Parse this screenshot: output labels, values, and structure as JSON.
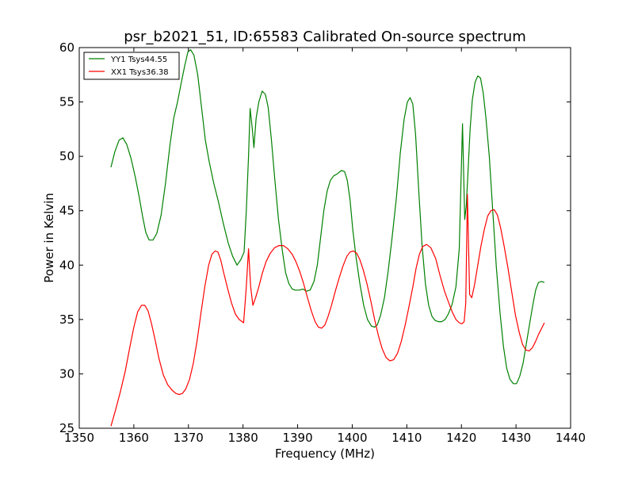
{
  "chart_data": {
    "type": "line",
    "title": "psr_b2021_51, ID:65583 Calibrated On-source spectrum",
    "xlabel": "Frequency (MHz)",
    "ylabel": "Power in Kelvin",
    "xlim": [
      1350,
      1440
    ],
    "ylim": [
      25,
      60
    ],
    "xticks": [
      1350,
      1360,
      1370,
      1380,
      1390,
      1400,
      1410,
      1420,
      1430,
      1440
    ],
    "yticks": [
      25,
      30,
      35,
      40,
      45,
      50,
      55,
      60
    ],
    "grid": false,
    "legend_position": "top-left",
    "series": [
      {
        "name": "YY1 Tsys44.55",
        "color": "#008000",
        "x": [
          1355.8,
          1356.5,
          1357.3,
          1358.0,
          1358.7,
          1359.5,
          1360.3,
          1361.0,
          1361.6,
          1362.2,
          1362.8,
          1363.5,
          1364.2,
          1365.0,
          1365.8,
          1366.6,
          1367.3,
          1368.0,
          1368.7,
          1369.3,
          1369.9,
          1370.4,
          1371.0,
          1371.7,
          1372.4,
          1373.1,
          1373.8,
          1374.6,
          1375.5,
          1376.4,
          1377.3,
          1378.1,
          1378.9,
          1379.6,
          1380.2,
          1380.6,
          1381.0,
          1381.3,
          1381.7,
          1382.0,
          1382.4,
          1382.9,
          1383.5,
          1384.1,
          1384.6,
          1385.2,
          1385.8,
          1386.5,
          1387.2,
          1387.8,
          1388.4,
          1389.0,
          1389.6,
          1390.3,
          1391.0,
          1391.6,
          1392.3,
          1393.0,
          1393.6,
          1394.2,
          1394.8,
          1395.4,
          1396.0,
          1396.6,
          1397.3,
          1398.0,
          1398.6,
          1399.1,
          1399.6,
          1400.1,
          1400.7,
          1401.4,
          1402.1,
          1402.8,
          1403.5,
          1404.1,
          1404.6,
          1405.2,
          1405.9,
          1406.6,
          1407.3,
          1408.1,
          1408.8,
          1409.5,
          1410.1,
          1410.6,
          1411.1,
          1411.6,
          1412.2,
          1412.8,
          1413.4,
          1414.0,
          1414.6,
          1415.2,
          1415.8,
          1416.4,
          1417.0,
          1417.6,
          1418.3,
          1419.0,
          1419.6,
          1420.2,
          1420.6,
          1420.9,
          1421.2,
          1421.6,
          1422.0,
          1422.5,
          1423.0,
          1423.5,
          1424.0,
          1424.5,
          1425.1,
          1425.7,
          1426.4,
          1427.1,
          1427.7,
          1428.3,
          1428.9,
          1429.5,
          1430.1,
          1430.7,
          1431.3,
          1431.9,
          1432.5,
          1433.1,
          1433.6,
          1434.1,
          1434.7,
          1435.2
        ],
        "y": [
          49.0,
          50.4,
          51.5,
          51.7,
          51.1,
          49.8,
          48.0,
          46.2,
          44.5,
          43.0,
          42.3,
          42.3,
          42.9,
          44.6,
          47.5,
          51.0,
          53.5,
          55.0,
          56.8,
          58.3,
          59.6,
          59.8,
          59.3,
          57.5,
          54.5,
          51.5,
          49.5,
          47.6,
          45.8,
          43.8,
          42.0,
          40.8,
          40.0,
          40.5,
          41.2,
          45.0,
          50.0,
          54.4,
          52.5,
          50.8,
          53.5,
          55.0,
          56.0,
          55.7,
          54.5,
          51.5,
          48.0,
          44.2,
          41.3,
          39.3,
          38.3,
          37.8,
          37.7,
          37.7,
          37.8,
          37.6,
          37.7,
          38.5,
          40.0,
          42.5,
          45.0,
          46.8,
          47.8,
          48.2,
          48.4,
          48.7,
          48.6,
          47.8,
          46.0,
          43.3,
          40.7,
          38.3,
          36.3,
          35.0,
          34.4,
          34.3,
          34.5,
          35.4,
          37.0,
          39.5,
          42.5,
          46.2,
          50.3,
          53.4,
          55.0,
          55.4,
          54.8,
          52.0,
          46.7,
          41.8,
          38.3,
          36.3,
          35.3,
          34.9,
          34.8,
          34.8,
          35.0,
          35.5,
          36.4,
          38.0,
          41.5,
          53.0,
          44.2,
          45.5,
          48.5,
          52.5,
          55.2,
          56.8,
          57.4,
          57.2,
          55.8,
          53.5,
          50.0,
          45.3,
          39.8,
          35.5,
          32.5,
          30.5,
          29.5,
          29.1,
          29.1,
          29.8,
          31.0,
          32.8,
          34.6,
          36.4,
          37.7,
          38.4,
          38.5,
          38.4
        ],
        "y_note": "series ends around 1435 MHz"
      },
      {
        "name": "XX1 Tsys36.38",
        "color": "#ff0000",
        "x": [
          1355.8,
          1356.6,
          1357.5,
          1358.4,
          1359.2,
          1360.0,
          1360.7,
          1361.4,
          1362.0,
          1362.6,
          1363.2,
          1363.9,
          1364.6,
          1365.4,
          1366.2,
          1367.0,
          1367.7,
          1368.3,
          1368.9,
          1369.5,
          1370.2,
          1370.9,
          1371.6,
          1372.3,
          1373.0,
          1373.7,
          1374.3,
          1374.9,
          1375.4,
          1375.9,
          1376.5,
          1377.2,
          1377.9,
          1378.6,
          1379.3,
          1380.1,
          1380.6,
          1381.0,
          1381.4,
          1381.8,
          1382.3,
          1382.9,
          1383.5,
          1384.2,
          1385.0,
          1385.8,
          1386.6,
          1387.4,
          1388.2,
          1389.0,
          1389.7,
          1390.4,
          1391.1,
          1391.8,
          1392.5,
          1393.2,
          1393.8,
          1394.4,
          1395.0,
          1395.6,
          1396.2,
          1396.9,
          1397.6,
          1398.3,
          1399.0,
          1399.6,
          1400.2,
          1400.8,
          1401.4,
          1402.0,
          1402.7,
          1403.4,
          1404.1,
          1404.8,
          1405.5,
          1406.2,
          1406.9,
          1407.6,
          1408.3,
          1409.0,
          1409.7,
          1410.4,
          1411.1,
          1411.7,
          1412.3,
          1412.9,
          1413.6,
          1414.4,
          1415.3,
          1416.1,
          1416.9,
          1417.7,
          1418.4,
          1419.0,
          1419.6,
          1420.1,
          1420.5,
          1420.8,
          1421.1,
          1421.5,
          1421.9,
          1422.4,
          1423.0,
          1423.6,
          1424.2,
          1424.8,
          1425.4,
          1426.0,
          1426.6,
          1427.2,
          1427.8,
          1428.5,
          1429.2,
          1429.9,
          1430.6,
          1431.2,
          1431.8,
          1432.4,
          1433.0,
          1433.6,
          1434.2,
          1434.8,
          1435.2
        ],
        "y": [
          25.2,
          26.6,
          28.3,
          30.2,
          32.3,
          34.3,
          35.7,
          36.3,
          36.3,
          35.8,
          34.7,
          33.1,
          31.4,
          29.9,
          29.0,
          28.5,
          28.2,
          28.1,
          28.2,
          28.6,
          29.5,
          31.0,
          33.1,
          35.6,
          38.0,
          40.0,
          41.0,
          41.3,
          41.2,
          40.5,
          39.2,
          37.8,
          36.5,
          35.5,
          35.0,
          34.7,
          38.0,
          41.5,
          38.0,
          36.3,
          37.0,
          38.0,
          39.2,
          40.3,
          41.1,
          41.6,
          41.8,
          41.8,
          41.5,
          41.0,
          40.3,
          39.4,
          38.3,
          37.0,
          35.8,
          34.8,
          34.3,
          34.2,
          34.5,
          35.3,
          36.3,
          37.6,
          38.8,
          39.9,
          40.8,
          41.2,
          41.3,
          41.1,
          40.5,
          39.6,
          38.3,
          36.7,
          35.0,
          33.5,
          32.3,
          31.5,
          31.2,
          31.3,
          31.9,
          33.0,
          34.5,
          36.2,
          38.0,
          39.7,
          41.0,
          41.7,
          41.9,
          41.6,
          40.6,
          39.0,
          37.6,
          36.5,
          35.6,
          35.0,
          34.7,
          34.6,
          34.8,
          36.5,
          46.5,
          37.3,
          37.0,
          38.2,
          40.0,
          41.8,
          43.3,
          44.5,
          45.0,
          45.1,
          44.6,
          43.4,
          41.8,
          39.8,
          37.6,
          35.4,
          33.8,
          32.7,
          32.2,
          32.1,
          32.4,
          33.0,
          33.7,
          34.3,
          34.7
        ]
      }
    ]
  }
}
